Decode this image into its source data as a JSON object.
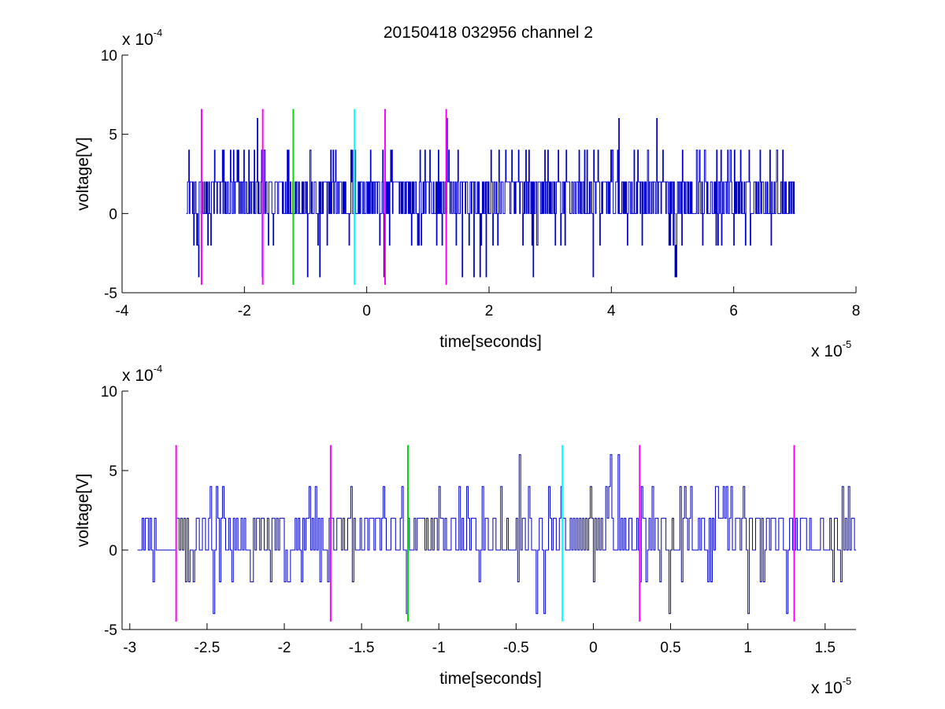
{
  "figure": {
    "title": "20150418 032956 channel 2"
  },
  "colors": {
    "signal": "#0000cc",
    "magenta": "#ff00ff",
    "green": "#00dd00",
    "cyan": "#00ffff",
    "axis": "#000000",
    "background": "#ffffff"
  },
  "chart_data": [
    {
      "type": "line",
      "name": "top-panel",
      "xlabel": "time[seconds]",
      "ylabel": "voltage[V]",
      "x_exponent": {
        "base": "x 10",
        "power": "-5"
      },
      "y_exponent": {
        "base": "x 10",
        "power": "-4"
      },
      "xlim": [
        -4e-05,
        8e-05
      ],
      "ylim": [
        -0.0005,
        0.001
      ],
      "x_ticks": [
        -4,
        -2,
        0,
        2,
        4,
        6,
        8
      ],
      "x_tick_labels": [
        "-4",
        "-2",
        "0",
        "2",
        "4",
        "6",
        "8"
      ],
      "y_ticks": [
        -5,
        0,
        5,
        10
      ],
      "y_tick_labels": [
        "-5",
        "0",
        "5",
        "10"
      ],
      "grid": false,
      "box": false,
      "series": [
        {
          "style": "noisy digitized trace (quantized steps of 2e-4 V)",
          "color": "#0000cc",
          "x_start": -2.95e-05,
          "x_end": 7e-05,
          "baseline_levels": [
            0,
            0.0002
          ],
          "min": -0.0004,
          "max": 0.0006,
          "sample_step": 1e-07
        }
      ],
      "markers": [
        {
          "x": -2.7e-05,
          "color": "#ff00ff",
          "y_range": [
            -0.00045,
            0.00066
          ]
        },
        {
          "x": -1.7e-05,
          "color": "#ff00ff",
          "y_range": [
            -0.00045,
            0.00066
          ]
        },
        {
          "x": -1.2e-05,
          "color": "#00dd00",
          "y_range": [
            -0.00045,
            0.00066
          ]
        },
        {
          "x": -2e-06,
          "color": "#00ffff",
          "y_range": [
            -0.00045,
            0.00066
          ]
        },
        {
          "x": 3e-06,
          "color": "#ff00ff",
          "y_range": [
            -0.00045,
            0.00066
          ]
        },
        {
          "x": 1.3e-05,
          "color": "#ff00ff",
          "y_range": [
            -0.00045,
            0.00066
          ]
        }
      ]
    },
    {
      "type": "line",
      "name": "bottom-panel",
      "xlabel": "time[seconds]",
      "ylabel": "voltage[V]",
      "x_exponent": {
        "base": "x 10",
        "power": "-5"
      },
      "y_exponent": {
        "base": "x 10",
        "power": "-4"
      },
      "xlim": [
        -3.05e-05,
        1.7e-05
      ],
      "ylim": [
        -0.0005,
        0.001
      ],
      "x_ticks": [
        -3,
        -2.5,
        -2,
        -1.5,
        -1,
        -0.5,
        0,
        0.5,
        1,
        1.5
      ],
      "x_tick_labels": [
        "-3",
        "-2.5",
        "-2",
        "-1.5",
        "-1",
        "-0.5",
        "0",
        "0.5",
        "1",
        "1.5"
      ],
      "y_ticks": [
        -5,
        0,
        5,
        10
      ],
      "y_tick_labels": [
        "-5",
        "0",
        "5",
        "10"
      ],
      "grid": false,
      "box": false,
      "series": [
        {
          "style": "noisy digitized trace (quantized steps of 2e-4 V)",
          "color": "#0000cc",
          "x_start": -2.95e-05,
          "x_end": 1.7e-05,
          "baseline_levels": [
            0,
            0.0002
          ],
          "min": -0.0004,
          "max": 0.0006,
          "sample_step": 1e-07
        }
      ],
      "markers": [
        {
          "x": -2.7e-05,
          "color": "#ff00ff",
          "y_range": [
            -0.00045,
            0.00066
          ]
        },
        {
          "x": -1.7e-05,
          "color": "#ff00ff",
          "y_range": [
            -0.00045,
            0.00066
          ]
        },
        {
          "x": -1.2e-05,
          "color": "#00dd00",
          "y_range": [
            -0.00045,
            0.00066
          ]
        },
        {
          "x": -2e-06,
          "color": "#00ffff",
          "y_range": [
            -0.00045,
            0.00066
          ]
        },
        {
          "x": 3e-06,
          "color": "#ff00ff",
          "y_range": [
            -0.00045,
            0.00066
          ]
        },
        {
          "x": 1.3e-05,
          "color": "#ff00ff",
          "y_range": [
            -0.00045,
            0.00066
          ]
        }
      ]
    }
  ]
}
